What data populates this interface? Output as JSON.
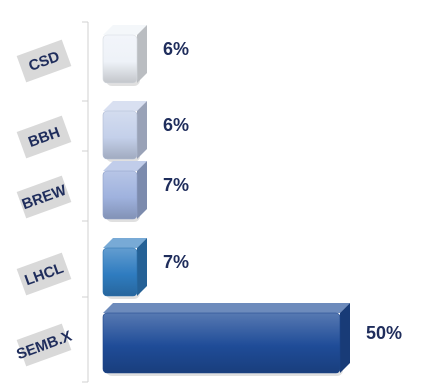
{
  "chart_data": {
    "type": "bar",
    "orientation": "horizontal",
    "categories": [
      "CSD",
      "BBH",
      "BREW",
      "LHCL",
      "SEMB.X"
    ],
    "values": [
      6,
      6,
      7,
      7,
      50
    ],
    "value_labels": [
      "6%",
      "6%",
      "7%",
      "7%",
      "50%"
    ],
    "unit": "%",
    "xlim": [
      0,
      50
    ],
    "grid": false,
    "legend": "none",
    "colors": [
      "#eef2f8",
      "#c4d0ea",
      "#9fb2de",
      "#2f7cc0",
      "#1f4c98"
    ]
  }
}
